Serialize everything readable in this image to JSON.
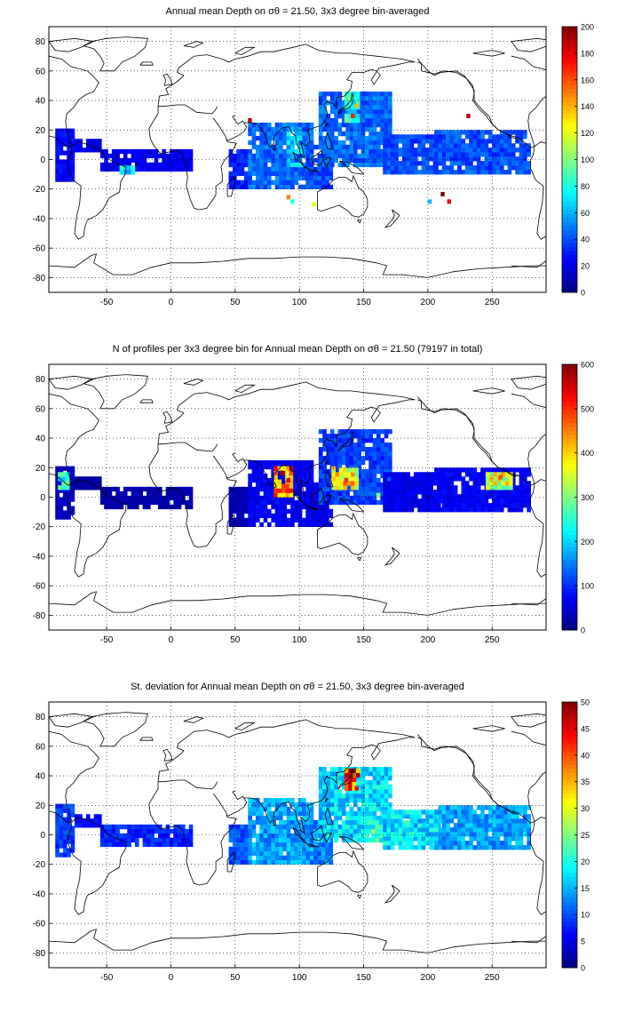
{
  "chart_data": [
    {
      "type": "heatmap",
      "title": "Annual mean Depth on σθ = 21.50, 3x3 degree bin-averaged",
      "xlim": [
        -95,
        292
      ],
      "ylim": [
        -90,
        90
      ],
      "x_ticks": [
        "-50",
        "0",
        "50",
        "100",
        "150",
        "200",
        "250"
      ],
      "y_ticks": [
        "80",
        "60",
        "40",
        "20",
        "0",
        "-20",
        "-40",
        "-60",
        "-80"
      ],
      "colorbar": {
        "min": 0,
        "max": 200,
        "ticks": [
          "0",
          "20",
          "40",
          "60",
          "80",
          "100",
          "120",
          "140",
          "160",
          "180",
          "200"
        ]
      },
      "grid": true,
      "regions": [
        {
          "lon": [
            -90,
            -75
          ],
          "lat": [
            -15,
            20
          ],
          "value": 25
        },
        {
          "lon": [
            -75,
            -55
          ],
          "lat": [
            5,
            12
          ],
          "value": 20
        },
        {
          "lon": [
            -55,
            15
          ],
          "lat": [
            -8,
            6
          ],
          "value": 22
        },
        {
          "lon": [
            -40,
            -30
          ],
          "lat": [
            -10,
            -4
          ],
          "value": 70
        },
        {
          "lon": [
            45,
            60
          ],
          "lat": [
            -20,
            5
          ],
          "value": 30
        },
        {
          "lon": [
            60,
            110
          ],
          "lat": [
            -20,
            25
          ],
          "value": 45
        },
        {
          "lon": [
            90,
            100
          ],
          "lat": [
            -5,
            20
          ],
          "value": 65
        },
        {
          "lon": [
            105,
            125
          ],
          "lat": [
            -20,
            10
          ],
          "value": 40
        },
        {
          "lon": [
            115,
            170
          ],
          "lat": [
            -5,
            45
          ],
          "value": 45
        },
        {
          "lon": [
            165,
            210
          ],
          "lat": [
            -10,
            15
          ],
          "value": 40
        },
        {
          "lon": [
            205,
            280
          ],
          "lat": [
            -10,
            20
          ],
          "value": 40
        },
        {
          "lon": [
            135,
            145
          ],
          "lat": [
            25,
            45
          ],
          "value": 80
        }
      ],
      "points": [
        {
          "lon": 60,
          "lat": 25,
          "value": 190
        },
        {
          "lon": 140,
          "lat": 28,
          "value": 170
        },
        {
          "lon": 143,
          "lat": 35,
          "value": 140
        },
        {
          "lon": 230,
          "lat": 28,
          "value": 190
        },
        {
          "lon": 90,
          "lat": -27,
          "value": 150
        },
        {
          "lon": 93,
          "lat": -30,
          "value": 80
        },
        {
          "lon": 110,
          "lat": -32,
          "value": 120
        },
        {
          "lon": 210,
          "lat": -25,
          "value": 200
        },
        {
          "lon": 215,
          "lat": -30,
          "value": 180
        },
        {
          "lon": 200,
          "lat": -30,
          "value": 60
        }
      ]
    },
    {
      "type": "heatmap",
      "title": "N of profiles per 3x3 degree bin for Annual mean Depth on σθ = 21.50 (79197 in total)",
      "xlim": [
        -95,
        292
      ],
      "ylim": [
        -90,
        90
      ],
      "x_ticks": [
        "-50",
        "0",
        "50",
        "100",
        "150",
        "200",
        "250"
      ],
      "y_ticks": [
        "80",
        "60",
        "40",
        "20",
        "0",
        "-20",
        "-40",
        "-60",
        "-80"
      ],
      "colorbar": {
        "min": 0,
        "max": 600,
        "ticks": [
          "0",
          "100",
          "200",
          "300",
          "400",
          "500",
          "600"
        ]
      },
      "grid": true,
      "regions": [
        {
          "lon": [
            -90,
            -75
          ],
          "lat": [
            -15,
            20
          ],
          "value": 40
        },
        {
          "lon": [
            -75,
            -55
          ],
          "lat": [
            5,
            12
          ],
          "value": 20
        },
        {
          "lon": [
            -55,
            15
          ],
          "lat": [
            -8,
            6
          ],
          "value": 25
        },
        {
          "lon": [
            45,
            60
          ],
          "lat": [
            -20,
            5
          ],
          "value": 30
        },
        {
          "lon": [
            60,
            110
          ],
          "lat": [
            -20,
            25
          ],
          "value": 70
        },
        {
          "lon": [
            80,
            95
          ],
          "lat": [
            0,
            20
          ],
          "value": 450
        },
        {
          "lon": [
            105,
            125
          ],
          "lat": [
            -20,
            10
          ],
          "value": 60
        },
        {
          "lon": [
            115,
            170
          ],
          "lat": [
            -5,
            45
          ],
          "value": 110
        },
        {
          "lon": [
            125,
            145
          ],
          "lat": [
            5,
            20
          ],
          "value": 380
        },
        {
          "lon": [
            165,
            210
          ],
          "lat": [
            -10,
            15
          ],
          "value": 60
        },
        {
          "lon": [
            205,
            280
          ],
          "lat": [
            -10,
            20
          ],
          "value": 70
        },
        {
          "lon": [
            245,
            265
          ],
          "lat": [
            5,
            15
          ],
          "value": 350
        },
        {
          "lon": [
            -88,
            -80
          ],
          "lat": [
            5,
            15
          ],
          "value": 250
        }
      ],
      "points": [
        {
          "lon": 85,
          "lat": 15,
          "value": 580
        },
        {
          "lon": 90,
          "lat": 10,
          "value": 550
        },
        {
          "lon": 135,
          "lat": 10,
          "value": 500
        },
        {
          "lon": 125,
          "lat": 18,
          "value": 420
        },
        {
          "lon": 160,
          "lat": 0,
          "value": 300
        },
        {
          "lon": 255,
          "lat": 12,
          "value": 480
        }
      ]
    },
    {
      "type": "heatmap",
      "title": "St. deviation for Annual mean Depth on σθ = 21.50, 3x3 degree bin-averaged",
      "xlim": [
        -95,
        292
      ],
      "ylim": [
        -90,
        90
      ],
      "x_ticks": [
        "-50",
        "0",
        "50",
        "100",
        "150",
        "200",
        "250"
      ],
      "y_ticks": [
        "80",
        "60",
        "40",
        "20",
        "0",
        "-20",
        "-40",
        "-60",
        "-80"
      ],
      "colorbar": {
        "min": 0,
        "max": 50,
        "ticks": [
          "0",
          "5",
          "10",
          "15",
          "20",
          "25",
          "30",
          "35",
          "40",
          "45",
          "50"
        ]
      },
      "grid": true,
      "regions": [
        {
          "lon": [
            -90,
            -75
          ],
          "lat": [
            -15,
            20
          ],
          "value": 9
        },
        {
          "lon": [
            -75,
            -55
          ],
          "lat": [
            5,
            12
          ],
          "value": 7
        },
        {
          "lon": [
            -55,
            15
          ],
          "lat": [
            -8,
            6
          ],
          "value": 8
        },
        {
          "lon": [
            45,
            60
          ],
          "lat": [
            -20,
            5
          ],
          "value": 10
        },
        {
          "lon": [
            60,
            110
          ],
          "lat": [
            -20,
            25
          ],
          "value": 14
        },
        {
          "lon": [
            105,
            125
          ],
          "lat": [
            -20,
            10
          ],
          "value": 13
        },
        {
          "lon": [
            115,
            170
          ],
          "lat": [
            -5,
            45
          ],
          "value": 17
        },
        {
          "lon": [
            150,
            200
          ],
          "lat": [
            -5,
            10
          ],
          "value": 21
        },
        {
          "lon": [
            165,
            210
          ],
          "lat": [
            -10,
            15
          ],
          "value": 17
        },
        {
          "lon": [
            205,
            280
          ],
          "lat": [
            -10,
            20
          ],
          "value": 14
        },
        {
          "lon": [
            135,
            145
          ],
          "lat": [
            30,
            45
          ],
          "value": 40
        }
      ],
      "points": [
        {
          "lon": 138,
          "lat": 38,
          "value": 48
        },
        {
          "lon": 143,
          "lat": 30,
          "value": 45
        },
        {
          "lon": 135,
          "lat": 42,
          "value": 35
        }
      ]
    }
  ]
}
